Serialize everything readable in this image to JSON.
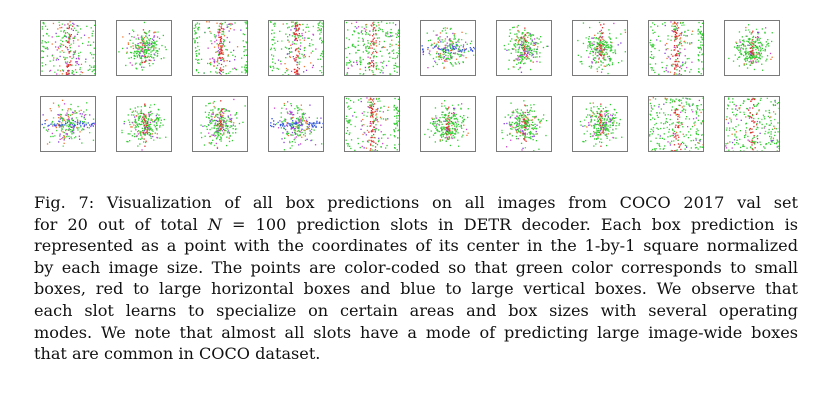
{
  "figure": {
    "panel_rows": 2,
    "panel_columns": 10,
    "slot_modes": [
      [
        "vertical",
        "blob",
        "vertical",
        "vertical",
        "wide",
        "horizontal",
        "blob",
        "blob",
        "vertical",
        "blob"
      ],
      [
        "horizontal",
        "blob",
        "blob",
        "horizontal",
        "vertical",
        "blob",
        "blob",
        "blob",
        "wide",
        "wide"
      ]
    ],
    "colors": {
      "small_boxes": "#33cc33",
      "large_horizontal_boxes": "#e03030",
      "large_vertical_boxes": "#3050e0",
      "panel_border": "#7a7a7a"
    }
  },
  "caption": {
    "lines": [
      {
        "segments": [
          "Fig. 7: Visualization of all box predictions on all images from COCO 2017 val set"
        ]
      },
      {
        "segments": [
          "for 20 out of total ",
          "N",
          " = 100 prediction slots in DETR decoder. Each box prediction is"
        ]
      },
      {
        "segments": [
          "represented as a point with the coordinates of its center in the 1-by-1 square normalized"
        ]
      },
      {
        "segments": [
          "by each image size. The points are color-coded so that green color corresponds to small"
        ]
      },
      {
        "segments": [
          "boxes, red to large horizontal boxes and blue to large vertical boxes. We observe that"
        ]
      },
      {
        "segments": [
          "each slot learns to specialize on certain areas and box sizes with several operating"
        ]
      },
      {
        "segments": [
          "modes. We note that almost all slots have a mode of predicting large image-wide boxes"
        ]
      },
      {
        "segments": [
          "that are common in COCO dataset."
        ]
      }
    ]
  }
}
